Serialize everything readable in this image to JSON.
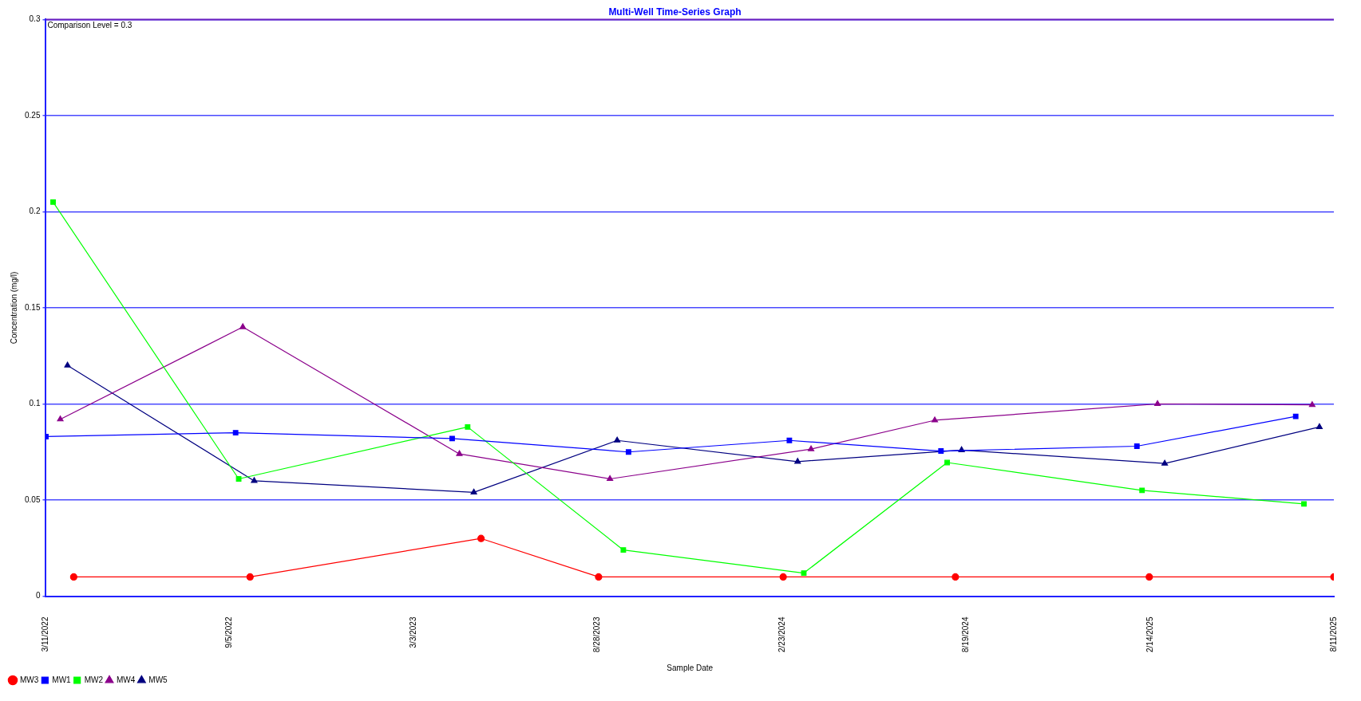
{
  "chart_data": {
    "type": "line",
    "title": "Multi-Well Time-Series Graph",
    "xlabel": "Sample Date",
    "ylabel": "Concentration (mg/l)",
    "xlim": [
      "2022-03-11",
      "2025-08-11"
    ],
    "xticks": [
      {
        "value": "2022-03-11",
        "label": "3/11/2022"
      },
      {
        "value": "2022-09-05",
        "label": "9/5/2022"
      },
      {
        "value": "2023-03-03",
        "label": "3/3/2023"
      },
      {
        "value": "2023-08-28",
        "label": "8/28/2023"
      },
      {
        "value": "2024-02-23",
        "label": "2/23/2024"
      },
      {
        "value": "2024-08-19",
        "label": "8/19/2024"
      },
      {
        "value": "2025-02-14",
        "label": "2/14/2025"
      },
      {
        "value": "2025-08-11",
        "label": "8/11/2025"
      }
    ],
    "ylim": [
      0,
      0.3
    ],
    "yticks": [
      0,
      0.05,
      0.1,
      0.15,
      0.2,
      0.25,
      0.3
    ],
    "grid": "y",
    "legend": "bottom left",
    "ref_lines": [
      {
        "axis": "y",
        "value": 0.3,
        "label": "Comparison Level = 0.3",
        "color": "#6a1fc0"
      }
    ],
    "series": [
      {
        "name": "MW3",
        "color": "#ff0000",
        "marker": "circle",
        "x": [
          "2022-04-07",
          "2022-09-25",
          "2023-05-07",
          "2023-08-29",
          "2024-02-24",
          "2024-08-09",
          "2025-02-13",
          "2025-08-11"
        ],
        "values": [
          0.01,
          0.01,
          0.03,
          0.01,
          0.01,
          0.01,
          0.01,
          0.01
        ]
      },
      {
        "name": "MW1",
        "color": "#0000ff",
        "marker": "square",
        "x": [
          "2022-03-11",
          "2022-09-11",
          "2023-04-09",
          "2023-09-27",
          "2024-03-01",
          "2024-07-26",
          "2025-02-01",
          "2025-07-05"
        ],
        "values": [
          0.083,
          0.085,
          0.082,
          0.075,
          0.081,
          0.0755,
          0.078,
          0.0935
        ]
      },
      {
        "name": "MW2",
        "color": "#00ff00",
        "marker": "square",
        "x": [
          "2022-03-18",
          "2022-09-14",
          "2023-04-24",
          "2023-09-22",
          "2024-03-15",
          "2024-08-01",
          "2025-02-06",
          "2025-07-13"
        ],
        "values": [
          0.205,
          0.061,
          0.088,
          0.024,
          0.012,
          0.0695,
          0.055,
          0.048
        ]
      },
      {
        "name": "MW4",
        "color": "#8b008b",
        "marker": "triangle",
        "x": [
          "2022-03-25",
          "2022-09-18",
          "2023-04-16",
          "2023-09-09",
          "2024-03-22",
          "2024-07-20",
          "2025-02-21",
          "2025-07-21"
        ],
        "values": [
          0.092,
          0.14,
          0.074,
          0.061,
          0.0765,
          0.0915,
          0.1,
          0.0995
        ]
      },
      {
        "name": "MW5",
        "color": "#000080",
        "marker": "triangle",
        "x": [
          "2022-04-01",
          "2022-09-29",
          "2023-04-30",
          "2023-09-16",
          "2024-03-09",
          "2024-08-15",
          "2025-02-28",
          "2025-07-28"
        ],
        "values": [
          0.12,
          0.06,
          0.054,
          0.081,
          0.07,
          0.076,
          0.069,
          0.088
        ]
      }
    ]
  }
}
